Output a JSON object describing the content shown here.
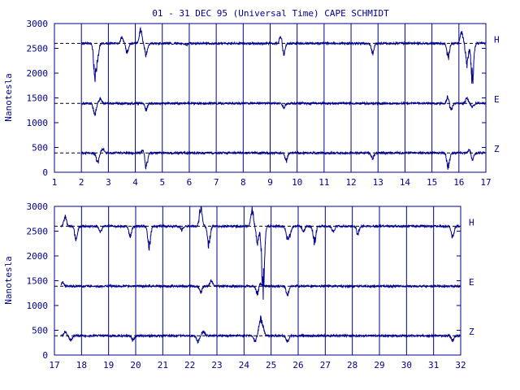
{
  "chart_data": {
    "type": "line",
    "title": "01 - 31 DEC 95 (Universal Time) CAPE SCHMIDT",
    "ylabel": "Nanotesla",
    "ylim": [
      0,
      3000
    ],
    "yticks": [
      0,
      500,
      1000,
      1500,
      2000,
      2500,
      3000
    ],
    "colors": {
      "trace": "#00008b",
      "axis": "#00008b",
      "baseline": "#000000"
    },
    "components": [
      "H",
      "E",
      "Z"
    ],
    "baselines": {
      "H": 2600,
      "E": 1390,
      "Z": 390
    },
    "panels": [
      {
        "xlim": [
          1,
          17
        ],
        "xticks": [
          1,
          2,
          3,
          4,
          5,
          6,
          7,
          8,
          9,
          10,
          11,
          12,
          13,
          14,
          15,
          16,
          17
        ],
        "events": {
          "H": [
            [
              2.5,
              -800
            ],
            [
              2.6,
              -350
            ],
            [
              3.5,
              150
            ],
            [
              3.7,
              -230
            ],
            [
              4.2,
              350
            ],
            [
              4.4,
              -300
            ],
            [
              5.9,
              -40
            ],
            [
              9.5,
              -320
            ],
            [
              9.4,
              200
            ],
            [
              12.8,
              -250
            ],
            [
              15.6,
              -350
            ],
            [
              16.1,
              300
            ],
            [
              16.3,
              -500
            ],
            [
              16.5,
              -900
            ]
          ],
          "E": [
            [
              2.5,
              -300
            ],
            [
              2.7,
              120
            ],
            [
              4.4,
              -150
            ],
            [
              9.5,
              -120
            ],
            [
              15.6,
              180
            ],
            [
              15.7,
              -200
            ],
            [
              16.3,
              120
            ],
            [
              16.5,
              -100
            ]
          ],
          "Z": [
            [
              2.6,
              -250
            ],
            [
              2.8,
              120
            ],
            [
              4.3,
              120
            ],
            [
              4.4,
              -380
            ],
            [
              9.6,
              -200
            ],
            [
              12.8,
              -150
            ],
            [
              15.6,
              -380
            ],
            [
              16.4,
              100
            ],
            [
              16.5,
              -200
            ]
          ]
        }
      },
      {
        "xlim": [
          17,
          32
        ],
        "xticks": [
          17,
          18,
          19,
          20,
          21,
          22,
          23,
          24,
          25,
          26,
          27,
          28,
          29,
          30,
          31,
          32
        ],
        "events": {
          "H": [
            [
              17.4,
              230
            ],
            [
              17.8,
              -350
            ],
            [
              18.7,
              -150
            ],
            [
              19.8,
              -250
            ],
            [
              20.5,
              -500
            ],
            [
              21.7,
              -100
            ],
            [
              22.4,
              500
            ],
            [
              22.7,
              -450
            ],
            [
              24.3,
              450
            ],
            [
              24.5,
              -400
            ],
            [
              24.7,
              -1600
            ],
            [
              25.6,
              -300
            ],
            [
              25.7,
              -200
            ],
            [
              26.2,
              -150
            ],
            [
              26.6,
              -400
            ],
            [
              27.3,
              -150
            ],
            [
              28.2,
              -200
            ],
            [
              31.7,
              -300
            ]
          ],
          "E": [
            [
              17.3,
              100
            ],
            [
              22.4,
              -150
            ],
            [
              22.8,
              150
            ],
            [
              24.5,
              -200
            ],
            [
              24.6,
              100
            ],
            [
              25.6,
              -220
            ]
          ],
          "Z": [
            [
              17.4,
              100
            ],
            [
              17.6,
              -130
            ],
            [
              19.9,
              -120
            ],
            [
              22.3,
              -160
            ],
            [
              22.5,
              130
            ],
            [
              24.4,
              -130
            ],
            [
              24.6,
              450
            ],
            [
              24.7,
              200
            ],
            [
              25.6,
              -150
            ],
            [
              31.7,
              -120
            ]
          ]
        }
      }
    ]
  }
}
